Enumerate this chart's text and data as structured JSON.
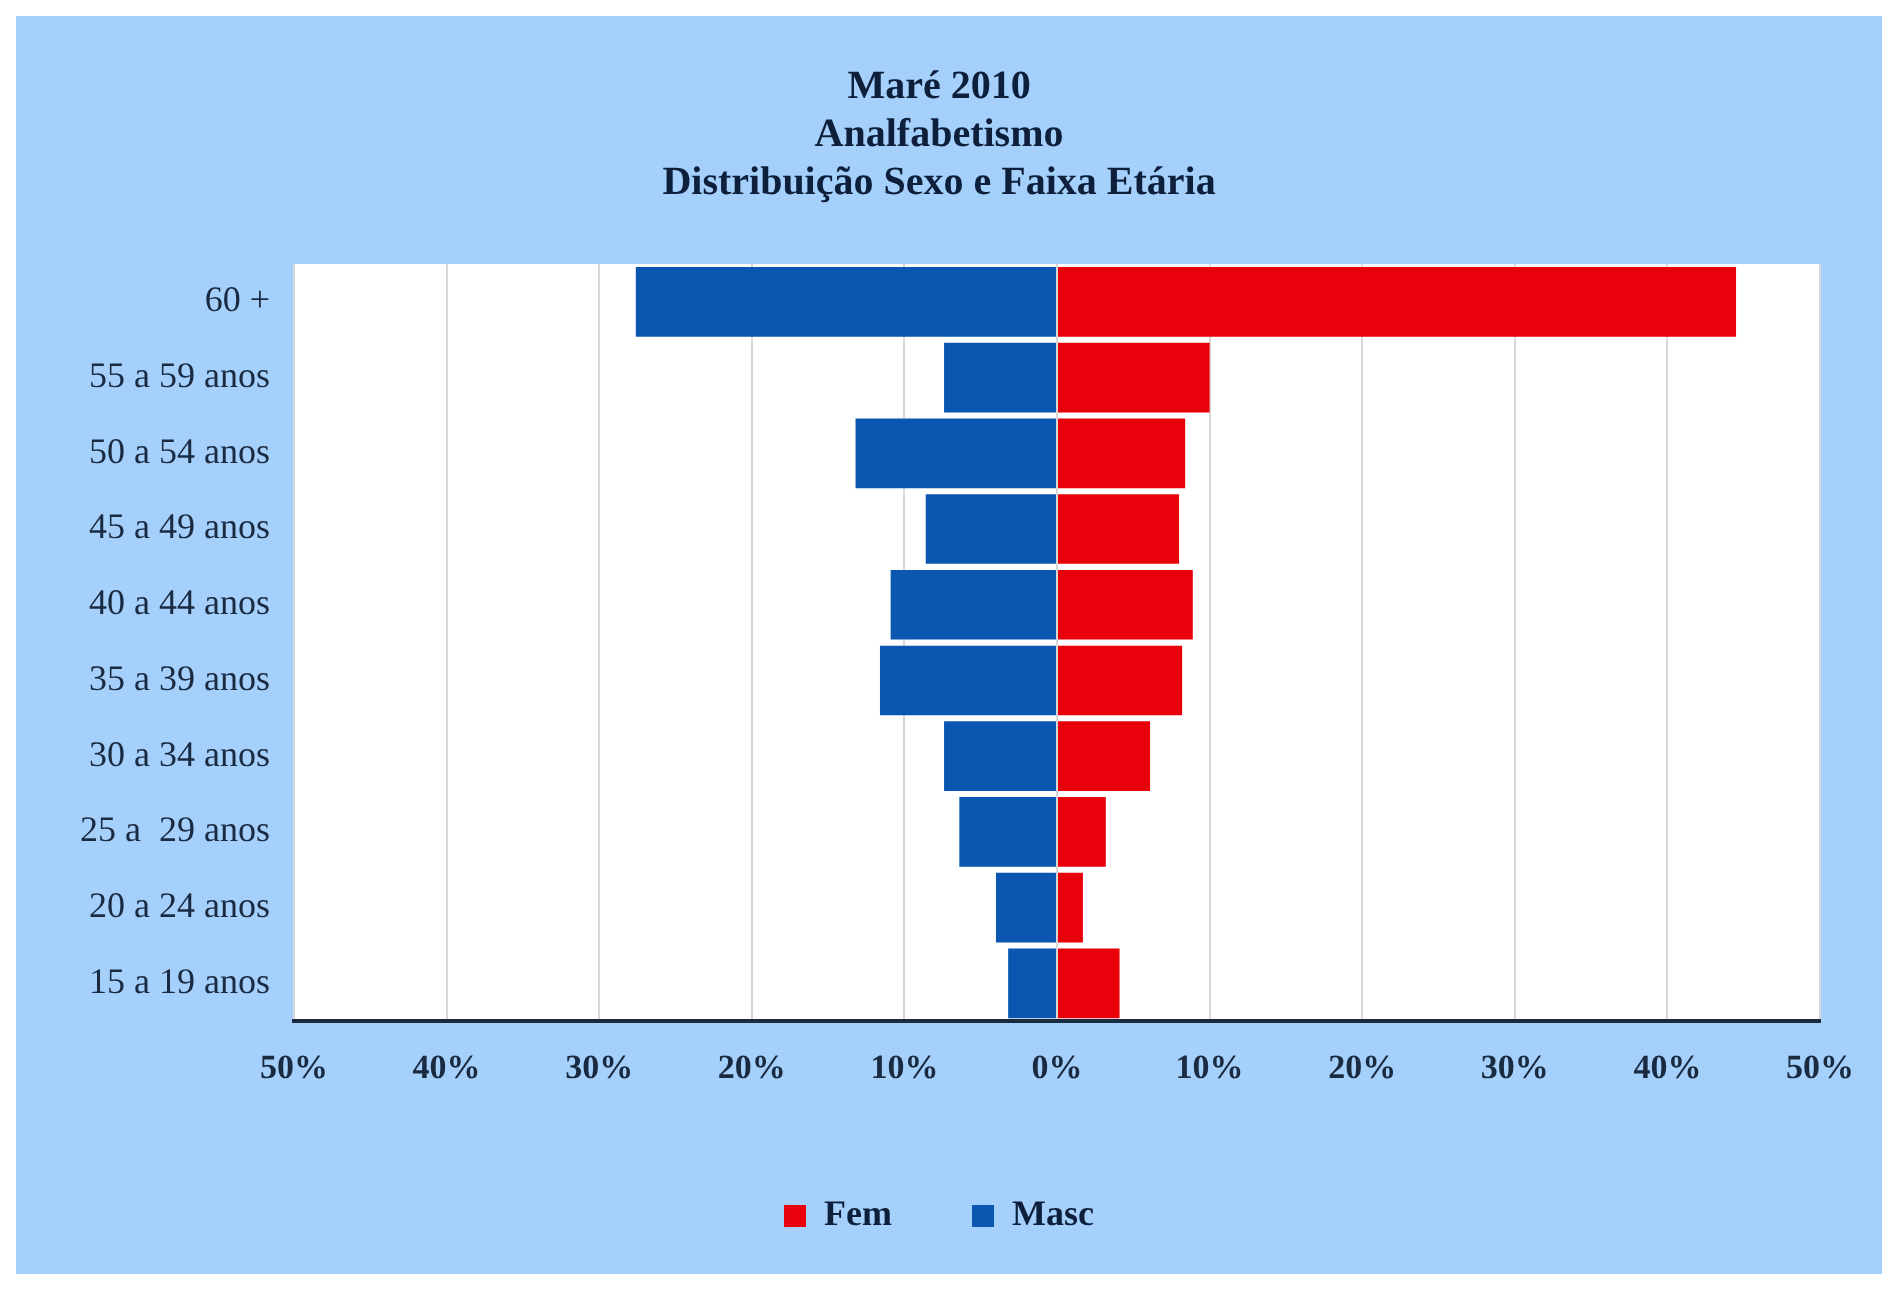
{
  "chart_data": {
    "type": "bar",
    "orientation": "horizontal",
    "stacked": true,
    "title": [
      "Maré 2010",
      "Analfabetismo",
      "Distribuição Sexo e Faixa Etária"
    ],
    "categories": [
      "60 +",
      "55 a 59 anos",
      "50 a 54 anos",
      "45 a 49 anos",
      "40 a 44 anos",
      "35 a 39 anos",
      "30 a 34 anos",
      "25 a  29 anos",
      "20 a 24 anos",
      "15 a 19 anos"
    ],
    "series": [
      {
        "name": "Fem",
        "color": "#e8000b",
        "values": [
          44.5,
          10,
          8.4,
          8,
          8.9,
          8.2,
          6.1,
          3.2,
          1.7,
          4.1
        ]
      },
      {
        "name": "Masc",
        "color": "#0a56b0",
        "values": [
          -27.6,
          -7.4,
          -13.2,
          -8.6,
          -10.9,
          -11.6,
          -7.4,
          -6.4,
          -4,
          -3.2
        ]
      }
    ],
    "xlim": [
      -50,
      50
    ],
    "xticks": [
      {
        "value": -50,
        "label": "50%"
      },
      {
        "value": -40,
        "label": "40%"
      },
      {
        "value": -30,
        "label": "30%"
      },
      {
        "value": -20,
        "label": "20%"
      },
      {
        "value": -10,
        "label": "10%"
      },
      {
        "value": 0,
        "label": "0%"
      },
      {
        "value": 10,
        "label": "10%"
      },
      {
        "value": 20,
        "label": "20%"
      },
      {
        "value": 30,
        "label": "30%"
      },
      {
        "value": 40,
        "label": "40%"
      },
      {
        "value": 50,
        "label": "50%"
      }
    ],
    "grid": "x",
    "legend": "bottom"
  }
}
